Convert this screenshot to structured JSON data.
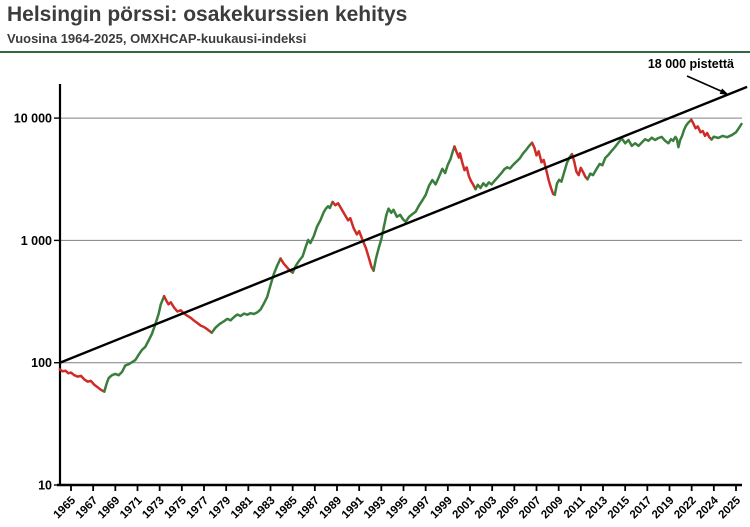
{
  "header": {
    "title": "Helsingin pörssi: osakekurssien kehitys",
    "subtitle": "Vuosina 1964-2025, OMXHCAP-kuukausi-indeksi"
  },
  "chart_data": {
    "type": "line",
    "title": "Helsingin pörssi: osakekurssien kehitys",
    "subtitle": "Vuosina 1964-2025, OMXHCAP-kuukausi-indeksi",
    "series_name": "OMXHCAP-kuukausi-indeksi",
    "annotation": "18 000 pistettä",
    "y_axis": {
      "scale": "log",
      "min": 10,
      "max": 10000,
      "ticks": [
        {
          "value": 10,
          "label": "10"
        },
        {
          "value": 100,
          "label": "100"
        },
        {
          "value": 1000,
          "label": "1 000"
        },
        {
          "value": 10000,
          "label": "10 000"
        }
      ]
    },
    "x_axis": {
      "tick_labels": [
        "1965",
        "1967",
        "1969",
        "1971",
        "1973",
        "1975",
        "1977",
        "1979",
        "1981",
        "1983",
        "1985",
        "1987",
        "1989",
        "1991",
        "1993",
        "1995",
        "1997",
        "1999",
        "2001",
        "2003",
        "2005",
        "2007",
        "2009",
        "2011",
        "2013",
        "2015",
        "2017",
        "2019",
        "2022",
        "2024",
        "2025"
      ]
    },
    "trend_line": {
      "start_year": 1964,
      "start_value": 100,
      "end_year": 2025.5,
      "end_value": 18000,
      "color": "#000000"
    },
    "colors": {
      "rise": "#3a7d3c",
      "fall": "#cf2b27",
      "grid": "#808080",
      "axis": "#000000"
    },
    "segments": [
      {
        "trend": "fall",
        "points": [
          [
            1964.0,
            88
          ],
          [
            1964.25,
            85
          ],
          [
            1964.5,
            86
          ],
          [
            1964.75,
            82
          ],
          [
            1965.0,
            83
          ],
          [
            1965.3,
            79
          ],
          [
            1965.6,
            77
          ],
          [
            1965.9,
            78
          ],
          [
            1966.2,
            73
          ],
          [
            1966.5,
            70
          ],
          [
            1966.8,
            71
          ],
          [
            1967.1,
            66
          ],
          [
            1967.4,
            63
          ],
          [
            1967.7,
            60
          ],
          [
            1968.0,
            58
          ]
        ]
      },
      {
        "trend": "rise",
        "points": [
          [
            1968.0,
            58
          ],
          [
            1968.2,
            67
          ],
          [
            1968.4,
            75
          ],
          [
            1968.7,
            79
          ],
          [
            1969.0,
            81
          ],
          [
            1969.3,
            79
          ],
          [
            1969.6,
            84
          ],
          [
            1969.9,
            95
          ],
          [
            1970.2,
            97
          ],
          [
            1970.5,
            101
          ],
          [
            1970.8,
            105
          ],
          [
            1971.1,
            116
          ],
          [
            1971.4,
            127
          ],
          [
            1971.7,
            135
          ],
          [
            1972.0,
            152
          ],
          [
            1972.3,
            172
          ],
          [
            1972.6,
            205
          ],
          [
            1972.9,
            250
          ],
          [
            1973.1,
            300
          ],
          [
            1973.4,
            350
          ]
        ]
      },
      {
        "trend": "fall",
        "points": [
          [
            1973.4,
            350
          ],
          [
            1973.6,
            322
          ],
          [
            1973.8,
            300
          ],
          [
            1974.0,
            312
          ],
          [
            1974.3,
            282
          ],
          [
            1974.6,
            262
          ],
          [
            1974.9,
            268
          ],
          [
            1975.2,
            252
          ],
          [
            1975.5,
            242
          ],
          [
            1975.8,
            233
          ],
          [
            1976.1,
            221
          ],
          [
            1976.4,
            211
          ],
          [
            1976.7,
            201
          ],
          [
            1977.0,
            196
          ],
          [
            1977.35,
            186
          ],
          [
            1977.7,
            176
          ]
        ]
      },
      {
        "trend": "rise",
        "points": [
          [
            1977.7,
            176
          ],
          [
            1978.0,
            192
          ],
          [
            1978.4,
            207
          ],
          [
            1978.8,
            218
          ],
          [
            1979.1,
            228
          ],
          [
            1979.4,
            222
          ],
          [
            1979.7,
            236
          ],
          [
            1980.0,
            248
          ],
          [
            1980.3,
            241
          ],
          [
            1980.6,
            252
          ],
          [
            1980.9,
            247
          ],
          [
            1981.2,
            254
          ],
          [
            1981.5,
            250
          ],
          [
            1981.8,
            258
          ],
          [
            1982.1,
            272
          ],
          [
            1982.4,
            305
          ],
          [
            1982.7,
            345
          ],
          [
            1983.0,
            430
          ],
          [
            1983.3,
            530
          ],
          [
            1983.6,
            620
          ],
          [
            1983.9,
            710
          ]
        ]
      },
      {
        "trend": "fall",
        "points": [
          [
            1983.9,
            710
          ],
          [
            1984.2,
            645
          ],
          [
            1984.5,
            602
          ],
          [
            1984.75,
            565
          ],
          [
            1985.0,
            545
          ]
        ]
      },
      {
        "trend": "rise",
        "points": [
          [
            1985.0,
            545
          ],
          [
            1985.3,
            625
          ],
          [
            1985.6,
            685
          ],
          [
            1985.9,
            740
          ],
          [
            1986.2,
            900
          ],
          [
            1986.4,
            1010
          ],
          [
            1986.6,
            950
          ],
          [
            1986.9,
            1080
          ],
          [
            1987.2,
            1300
          ],
          [
            1987.5,
            1460
          ],
          [
            1987.8,
            1700
          ],
          [
            1988.0,
            1820
          ],
          [
            1988.2,
            1900
          ],
          [
            1988.35,
            1840
          ],
          [
            1988.6,
            2060
          ]
        ]
      },
      {
        "trend": "fall",
        "points": [
          [
            1988.6,
            2060
          ],
          [
            1988.85,
            1940
          ],
          [
            1989.1,
            2010
          ],
          [
            1989.4,
            1810
          ],
          [
            1989.7,
            1620
          ],
          [
            1990.0,
            1460
          ],
          [
            1990.2,
            1520
          ],
          [
            1990.5,
            1260
          ],
          [
            1990.8,
            1120
          ],
          [
            1991.0,
            1190
          ],
          [
            1991.3,
            1010
          ],
          [
            1991.6,
            870
          ],
          [
            1991.9,
            710
          ],
          [
            1992.1,
            610
          ],
          [
            1992.3,
            565
          ]
        ]
      },
      {
        "trend": "rise",
        "points": [
          [
            1992.3,
            565
          ],
          [
            1992.5,
            700
          ],
          [
            1992.75,
            860
          ],
          [
            1993.0,
            1020
          ],
          [
            1993.2,
            1260
          ],
          [
            1993.45,
            1610
          ],
          [
            1993.65,
            1820
          ],
          [
            1993.9,
            1680
          ],
          [
            1994.1,
            1780
          ],
          [
            1994.4,
            1560
          ],
          [
            1994.7,
            1620
          ],
          [
            1994.95,
            1490
          ],
          [
            1995.2,
            1420
          ],
          [
            1995.5,
            1560
          ],
          [
            1995.8,
            1640
          ],
          [
            1996.1,
            1720
          ],
          [
            1996.4,
            1930
          ],
          [
            1996.7,
            2120
          ],
          [
            1997.0,
            2360
          ],
          [
            1997.3,
            2800
          ],
          [
            1997.6,
            3120
          ],
          [
            1997.9,
            2870
          ],
          [
            1998.2,
            3320
          ],
          [
            1998.5,
            3850
          ],
          [
            1998.75,
            3550
          ],
          [
            1999.0,
            4150
          ],
          [
            1999.25,
            4650
          ],
          [
            1999.45,
            5350
          ],
          [
            1999.6,
            5850
          ]
        ]
      },
      {
        "trend": "fall",
        "points": [
          [
            1999.6,
            5850
          ],
          [
            1999.8,
            5250
          ],
          [
            2000.0,
            4750
          ],
          [
            2000.1,
            5150
          ],
          [
            2000.3,
            4350
          ],
          [
            2000.5,
            3750
          ],
          [
            2000.7,
            3950
          ],
          [
            2000.9,
            3350
          ],
          [
            2001.1,
            3050
          ],
          [
            2001.3,
            2850
          ],
          [
            2001.5,
            2620
          ]
        ]
      },
      {
        "trend": "rise",
        "points": [
          [
            2001.5,
            2620
          ],
          [
            2001.7,
            2850
          ],
          [
            2001.95,
            2680
          ],
          [
            2002.2,
            2930
          ],
          [
            2002.45,
            2780
          ],
          [
            2002.7,
            2980
          ],
          [
            2002.95,
            2870
          ],
          [
            2003.2,
            3060
          ],
          [
            2003.5,
            3280
          ],
          [
            2003.8,
            3520
          ],
          [
            2004.1,
            3820
          ],
          [
            2004.35,
            3960
          ],
          [
            2004.6,
            3870
          ],
          [
            2004.9,
            4150
          ],
          [
            2005.2,
            4420
          ],
          [
            2005.5,
            4700
          ],
          [
            2005.8,
            5150
          ],
          [
            2006.1,
            5550
          ],
          [
            2006.35,
            5950
          ],
          [
            2006.6,
            6280
          ]
        ]
      },
      {
        "trend": "fall",
        "points": [
          [
            2006.6,
            6280
          ],
          [
            2006.8,
            5750
          ],
          [
            2007.0,
            4950
          ],
          [
            2007.2,
            5350
          ],
          [
            2007.45,
            4350
          ],
          [
            2007.65,
            4550
          ],
          [
            2007.9,
            3700
          ],
          [
            2008.1,
            3100
          ],
          [
            2008.3,
            2700
          ],
          [
            2008.5,
            2400
          ],
          [
            2008.65,
            2360
          ]
        ]
      },
      {
        "trend": "rise",
        "points": [
          [
            2008.65,
            2360
          ],
          [
            2008.85,
            2920
          ],
          [
            2009.05,
            3130
          ],
          [
            2009.25,
            3020
          ],
          [
            2009.5,
            3620
          ],
          [
            2009.75,
            4320
          ],
          [
            2010.0,
            4820
          ],
          [
            2010.2,
            5070
          ]
        ]
      },
      {
        "trend": "fall",
        "points": [
          [
            2010.2,
            5070
          ],
          [
            2010.4,
            4420
          ],
          [
            2010.6,
            3650
          ],
          [
            2010.8,
            3420
          ],
          [
            2011.0,
            3920
          ],
          [
            2011.2,
            3620
          ],
          [
            2011.4,
            3320
          ],
          [
            2011.6,
            3160
          ]
        ]
      },
      {
        "trend": "rise",
        "points": [
          [
            2011.6,
            3160
          ],
          [
            2011.85,
            3520
          ],
          [
            2012.1,
            3420
          ],
          [
            2012.4,
            3820
          ],
          [
            2012.7,
            4220
          ],
          [
            2012.95,
            4120
          ],
          [
            2013.2,
            4720
          ],
          [
            2013.5,
            5020
          ],
          [
            2013.8,
            5420
          ],
          [
            2014.1,
            5820
          ],
          [
            2014.4,
            6320
          ],
          [
            2014.7,
            6820
          ],
          [
            2015.0,
            6220
          ],
          [
            2015.3,
            6620
          ],
          [
            2015.6,
            5920
          ],
          [
            2015.9,
            6220
          ],
          [
            2016.2,
            5920
          ],
          [
            2016.5,
            6320
          ],
          [
            2016.8,
            6720
          ],
          [
            2017.1,
            6520
          ],
          [
            2017.4,
            6920
          ],
          [
            2017.7,
            6620
          ],
          [
            2018.0,
            6870
          ],
          [
            2018.3,
            7020
          ],
          [
            2018.6,
            6520
          ],
          [
            2018.9,
            6220
          ],
          [
            2019.2,
            6720
          ],
          [
            2019.5,
            6520
          ],
          [
            2019.8,
            7020
          ],
          [
            2020.0,
            6720
          ],
          [
            2020.2,
            5780
          ],
          [
            2020.45,
            6620
          ],
          [
            2020.7,
            7150
          ],
          [
            2020.95,
            7950
          ],
          [
            2021.2,
            8620
          ],
          [
            2021.5,
            9120
          ],
          [
            2021.95,
            9700
          ]
        ]
      },
      {
        "trend": "fall",
        "points": [
          [
            2021.95,
            9700
          ],
          [
            2022.15,
            9050
          ],
          [
            2022.35,
            8250
          ],
          [
            2022.55,
            8550
          ],
          [
            2022.8,
            7650
          ],
          [
            2023.0,
            7850
          ],
          [
            2023.2,
            7150
          ],
          [
            2023.4,
            7550
          ],
          [
            2023.6,
            6950
          ],
          [
            2023.8,
            6680
          ]
        ]
      },
      {
        "trend": "rise",
        "points": [
          [
            2023.8,
            6680
          ],
          [
            2024.0,
            7050
          ],
          [
            2024.2,
            6880
          ],
          [
            2024.4,
            7150
          ],
          [
            2024.6,
            6980
          ],
          [
            2024.8,
            7250
          ],
          [
            2025.0,
            7650
          ],
          [
            2025.12,
            8250
          ],
          [
            2025.25,
            8950
          ]
        ]
      }
    ]
  }
}
